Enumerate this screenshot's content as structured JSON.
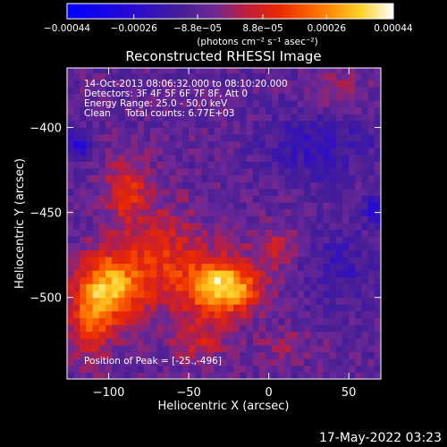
{
  "chart_data": {
    "type": "heatmap",
    "title": "Reconstructed RHESSI Image",
    "xlabel": "Heliocentric X (arcsec)",
    "ylabel": "Heliocentric Y (arcsec)",
    "xlim": [
      -126,
      70
    ],
    "ylim": [
      -548,
      -365
    ],
    "x_ticks": [
      -100,
      -50,
      0,
      50
    ],
    "x_tick_labels": [
      "−100",
      "−50",
      "0",
      "50"
    ],
    "y_ticks": [
      -400,
      -450,
      -500
    ],
    "y_tick_labels": [
      "−400",
      "−450",
      "−500"
    ],
    "colorbar": {
      "range": [
        -0.00044,
        0.00044
      ],
      "tick_values": [
        -0.00044,
        -0.00026,
        -8.8e-05,
        8.8e-05,
        0.00026,
        0.00044
      ],
      "tick_labels": [
        "−0.00044",
        "−0.00026",
        "−8.8e−05",
        "8.8e−05",
        "0.00026",
        "0.00044"
      ],
      "unit_label": "(photons cm⁻² s⁻¹ asec⁻²)"
    },
    "info_lines": [
      "14-Oct-2013 08:06:32.000 to 08:10:20.000",
      "Detectors: 3F 4F 5F 6F 7F 8F, Att 0",
      "Energy Range: 25.0 - 50.0 keV",
      "Clean     Total counts: 6.77E+03"
    ],
    "peak_label": "Position of Peak = [-25.,-496]",
    "peak": [
      -25,
      -496
    ],
    "sources": [
      {
        "x": -28,
        "y": -494,
        "sx": 15,
        "sy": 11,
        "amp": 0.00046
      },
      {
        "x": -98,
        "y": -494,
        "sx": 13,
        "sy": 14,
        "amp": 0.00034
      },
      {
        "x": -66,
        "y": -478,
        "sx": 20,
        "sy": 20,
        "amp": 0.00019
      },
      {
        "x": -112,
        "y": -512,
        "sx": 10,
        "sy": 18,
        "amp": 0.00022
      },
      {
        "x": -88,
        "y": -436,
        "sx": 10,
        "sy": 14,
        "amp": 0.00018
      },
      {
        "x": -45,
        "y": -525,
        "sx": 12,
        "sy": 10,
        "amp": 0.00014
      },
      {
        "x": 5,
        "y": -470,
        "sx": 10,
        "sy": 9,
        "amp": 0.00012
      },
      {
        "x": 45,
        "y": -380,
        "sx": 10,
        "sy": 10,
        "amp": 0.0001
      },
      {
        "x": 10,
        "y": -528,
        "sx": 12,
        "sy": 6,
        "amp": 8e-05
      },
      {
        "x": 30,
        "y": -410,
        "sx": 22,
        "sy": 14,
        "amp": -0.00012
      },
      {
        "x": -120,
        "y": -410,
        "sx": 6,
        "sy": 6,
        "amp": -0.00018
      },
      {
        "x": 66,
        "y": -448,
        "sx": 5,
        "sy": 6,
        "amp": -0.00016
      },
      {
        "x": 45,
        "y": -480,
        "sx": 16,
        "sy": 16,
        "amp": -9e-05
      }
    ]
  },
  "timestamp": "17-May-2022 03:23"
}
